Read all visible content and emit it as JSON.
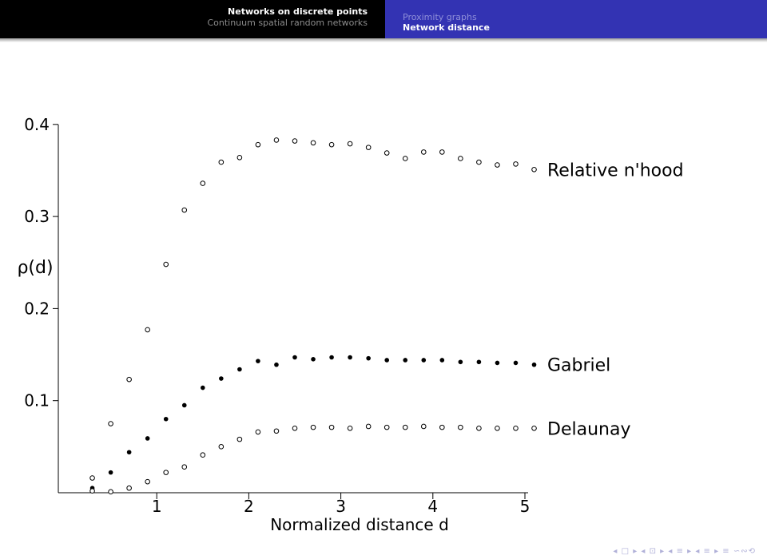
{
  "header": {
    "section_active": "Networks on discrete points",
    "section_inactive": "Continuum spatial random networks",
    "subsection_inactive": "Proximity graphs",
    "subsection_active": "Network distance"
  },
  "nav_symbols": "◂ □ ▸ ◂ ⊡ ▸ ◂ ≡ ▸ ◂ ≡ ▸   ≡   ∽∾⟲",
  "chart_data": {
    "type": "scatter",
    "ylabel": "ρ(d)",
    "xlabel": "Normalized distance d",
    "xlim": [
      0,
      5.05
    ],
    "ylim": [
      0,
      0.4
    ],
    "xticks": [
      1,
      2,
      3,
      4,
      5
    ],
    "yticks": [
      0.1,
      0.2,
      0.3,
      0.4
    ],
    "ytick_labels": [
      "0.1",
      "0.2",
      "0.3",
      "0.4"
    ],
    "grid": false,
    "x": [
      0.3,
      0.5,
      0.7,
      0.9,
      1.1,
      1.3,
      1.5,
      1.7,
      1.9,
      2.1,
      2.3,
      2.5,
      2.7,
      2.9,
      3.1,
      3.3,
      3.5,
      3.7,
      3.9,
      4.1,
      4.3,
      4.5,
      4.7,
      4.9,
      5.1
    ],
    "series": [
      {
        "name": "Relative n'hood",
        "marker": "open",
        "values": [
          0.016,
          0.075,
          0.123,
          0.177,
          0.248,
          0.307,
          0.336,
          0.359,
          0.364,
          0.378,
          0.383,
          0.382,
          0.38,
          0.378,
          0.379,
          0.375,
          0.369,
          0.363,
          0.37,
          0.37,
          0.363,
          0.359,
          0.356,
          0.357,
          0.351
        ]
      },
      {
        "name": "Gabriel",
        "marker": "filled",
        "values": [
          0.005,
          0.022,
          0.044,
          0.059,
          0.08,
          0.095,
          0.114,
          0.124,
          0.134,
          0.143,
          0.139,
          0.147,
          0.145,
          0.147,
          0.147,
          0.146,
          0.144,
          0.144,
          0.144,
          0.144,
          0.142,
          0.142,
          0.141,
          0.141,
          0.139
        ]
      },
      {
        "name": "Delaunay",
        "marker": "open",
        "values": [
          0.002,
          0.001,
          0.005,
          0.012,
          0.022,
          0.028,
          0.041,
          0.05,
          0.058,
          0.066,
          0.067,
          0.07,
          0.071,
          0.071,
          0.07,
          0.072,
          0.071,
          0.071,
          0.072,
          0.071,
          0.071,
          0.07,
          0.07,
          0.07,
          0.07
        ]
      }
    ]
  }
}
